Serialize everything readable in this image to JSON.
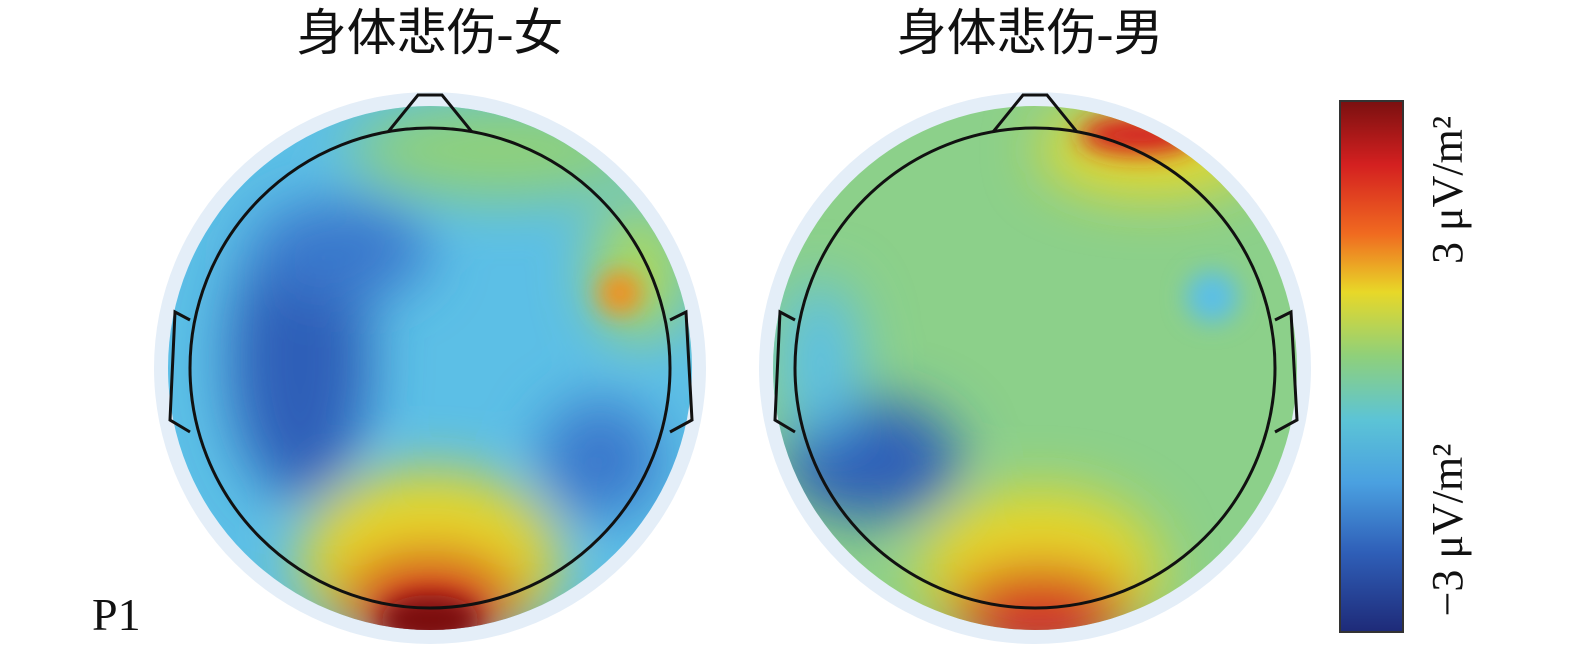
{
  "panels": [
    {
      "title": "身体悲伤-女"
    },
    {
      "title": "身体悲伤-男"
    }
  ],
  "label": "P1",
  "colorbar": {
    "max_label": "3 μV/m²",
    "min_label": "−3 μV/m²"
  }
}
